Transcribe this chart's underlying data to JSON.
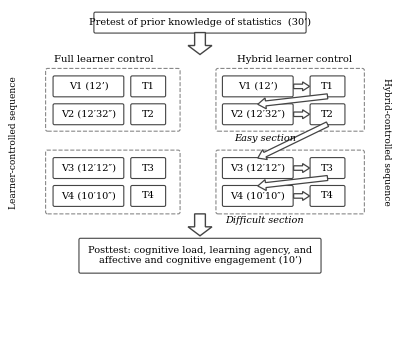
{
  "bg_color": "#ffffff",
  "title_text": "Pretest of prior knowledge of statistics  (30’)",
  "posttest_line1": "Posttest: cognitive load, learning agency, and",
  "posttest_line2": "affective and cognitive engagement (10’)",
  "full_label": "Full learner control",
  "hybrid_label": "Hybrid learner control",
  "left_side_label": "Learner-controlled sequence",
  "right_side_label": "Hybrid-controlled sequence",
  "easy_label": "Easy section",
  "difficult_label": "Difficult section",
  "edge_color": "#444444",
  "dashed_color": "#888888",
  "rows_left": [
    [
      "V1 (12’)",
      "T1"
    ],
    [
      "V2 (12′32″)",
      "T2"
    ],
    [
      "V3 (12′12″)",
      "T3"
    ],
    [
      "V4 (10′10″)",
      "T4"
    ]
  ],
  "rows_right": [
    [
      "V1 (12’)",
      "T1"
    ],
    [
      "V2 (12′32″)",
      "T2"
    ],
    [
      "V3 (12′12″)",
      "T3"
    ],
    [
      "V4 (10′10″)",
      "T4"
    ]
  ]
}
